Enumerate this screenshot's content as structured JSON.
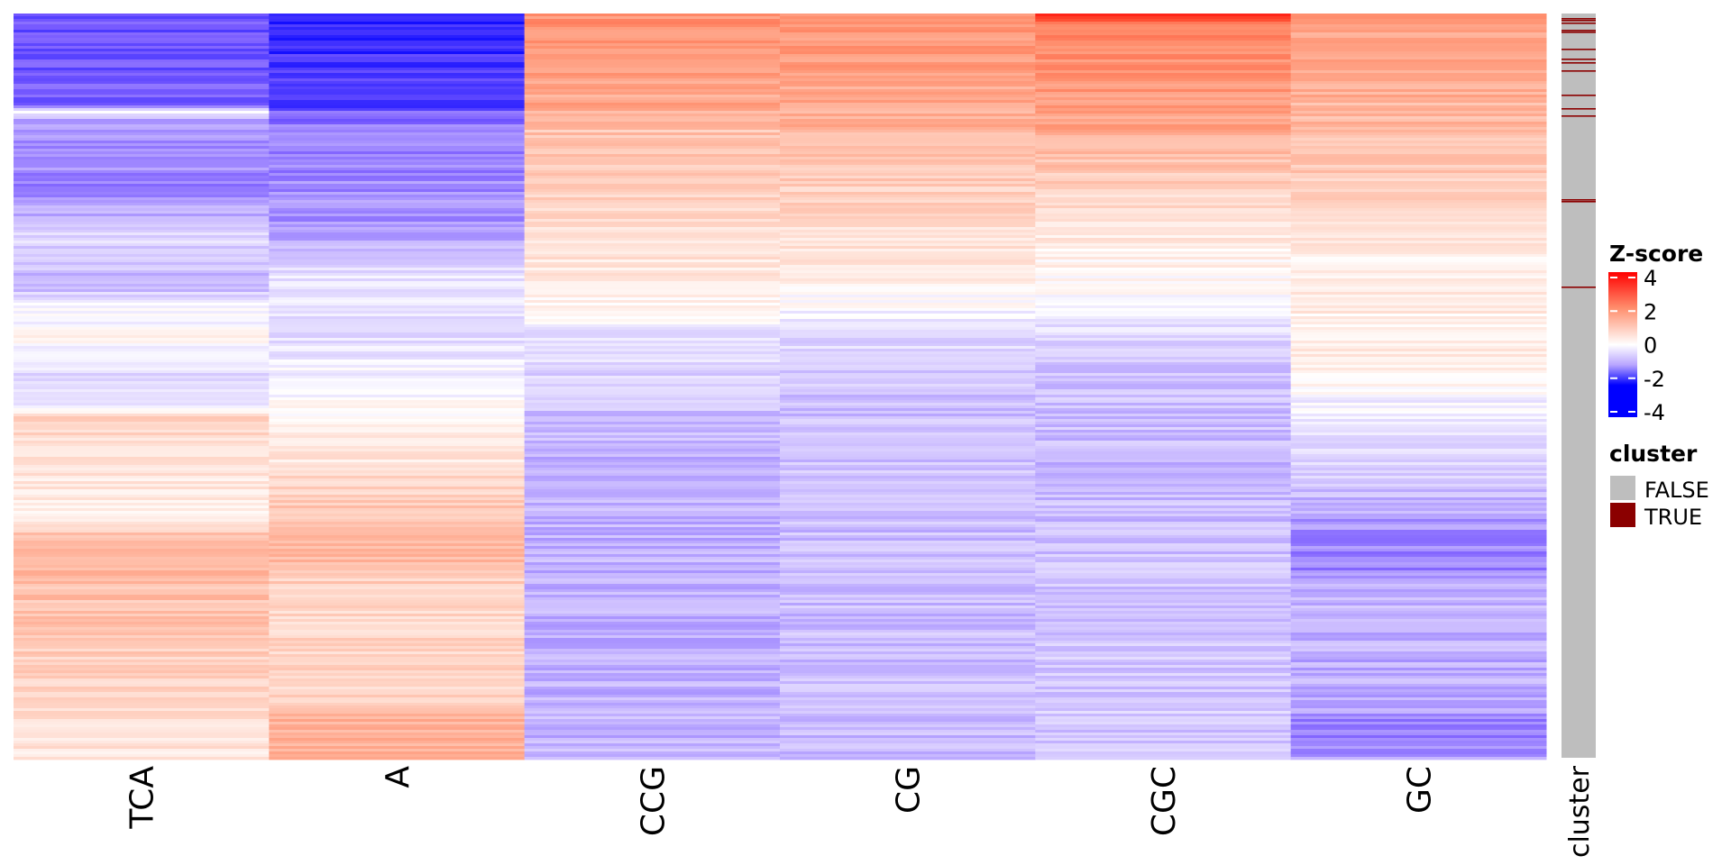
{
  "chart_data": {
    "type": "heatmap",
    "title": "",
    "columns": [
      "TCA",
      "A",
      "CCG",
      "CG",
      "CGC",
      "GC"
    ],
    "annotation_label": "cluster",
    "row_count": 826,
    "column_profiles_z_by_row": {
      "TCA": [
        [
          0,
          -2.2
        ],
        [
          100,
          -2.0
        ],
        [
          107,
          -0.2
        ],
        [
          118,
          -1.4
        ],
        [
          200,
          -1.6
        ],
        [
          215,
          -1.2
        ],
        [
          250,
          -0.6
        ],
        [
          300,
          -1.2
        ],
        [
          320,
          -0.2
        ],
        [
          360,
          0.1
        ],
        [
          400,
          -0.6
        ],
        [
          440,
          -0.2
        ],
        [
          445,
          0.9
        ],
        [
          510,
          0.5
        ],
        [
          560,
          0.2
        ],
        [
          580,
          1.4
        ],
        [
          700,
          1.0
        ],
        [
          826,
          0.5
        ]
      ],
      "A": [
        [
          0,
          -2.6
        ],
        [
          100,
          -2.4
        ],
        [
          110,
          -1.8
        ],
        [
          240,
          -1.4
        ],
        [
          260,
          -0.9
        ],
        [
          300,
          -0.3
        ],
        [
          360,
          -0.5
        ],
        [
          440,
          0.1
        ],
        [
          500,
          0.5
        ],
        [
          510,
          0.8
        ],
        [
          580,
          1.2
        ],
        [
          600,
          1.6
        ],
        [
          610,
          1.0
        ],
        [
          680,
          0.8
        ],
        [
          770,
          0.9
        ],
        [
          780,
          1.5
        ],
        [
          826,
          1.4
        ]
      ],
      "CCG": [
        [
          0,
          2.0
        ],
        [
          100,
          1.6
        ],
        [
          120,
          1.2
        ],
        [
          280,
          0.5
        ],
        [
          330,
          0.1
        ],
        [
          350,
          -0.4
        ],
        [
          420,
          -0.8
        ],
        [
          500,
          -1.1
        ],
        [
          826,
          -1.1
        ]
      ],
      "CG": [
        [
          0,
          2.0
        ],
        [
          120,
          1.5
        ],
        [
          200,
          0.9
        ],
        [
          280,
          0.4
        ],
        [
          310,
          0.1
        ],
        [
          360,
          -0.6
        ],
        [
          420,
          -0.9
        ],
        [
          826,
          -1.0
        ]
      ],
      "CGC": [
        [
          0,
          3.6
        ],
        [
          10,
          2.2
        ],
        [
          120,
          1.7
        ],
        [
          200,
          0.8
        ],
        [
          280,
          0.2
        ],
        [
          330,
          -0.2
        ],
        [
          370,
          -0.8
        ],
        [
          500,
          -1.0
        ],
        [
          826,
          -0.8
        ]
      ],
      "GC": [
        [
          0,
          1.8
        ],
        [
          150,
          1.2
        ],
        [
          260,
          0.4
        ],
        [
          400,
          0.3
        ],
        [
          430,
          -0.2
        ],
        [
          520,
          -0.8
        ],
        [
          580,
          -1.6
        ],
        [
          620,
          -1.6
        ],
        [
          640,
          -1.1
        ],
        [
          770,
          -1.2
        ],
        [
          790,
          -1.8
        ],
        [
          826,
          -1.4
        ]
      ]
    },
    "cluster_true_rows": [
      5,
      7,
      10,
      18,
      20,
      39,
      50,
      54,
      63,
      90,
      105,
      113,
      206,
      208,
      303
    ],
    "color_scale": {
      "title": "Z-score",
      "ticks": [
        "4",
        "2",
        "0",
        "-2",
        "-4"
      ],
      "range": [
        -4,
        4
      ],
      "low": "#0000ff",
      "mid": "#ffffff",
      "high": "#ff0000"
    },
    "cluster_legend": {
      "title": "cluster",
      "entries": [
        {
          "label": "FALSE",
          "color": "#bebebe"
        },
        {
          "label": "TRUE",
          "color": "#8b0000"
        }
      ]
    }
  }
}
